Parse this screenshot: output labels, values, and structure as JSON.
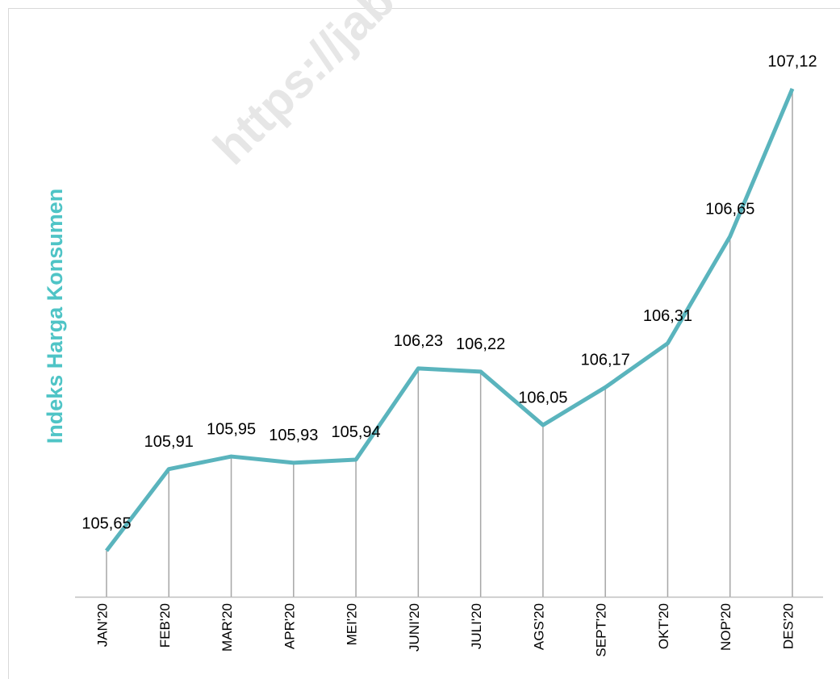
{
  "chart_data": {
    "type": "line",
    "y_axis_label": "Indeks Harga Konsumen",
    "watermark": "https://jab",
    "categories": [
      "JAN'20",
      "FEB'20",
      "MAR'20",
      "APR'20",
      "MEI'20",
      "JUNI'20",
      "JULI'20",
      "AGS'20",
      "SEPT'20",
      "OKT'20",
      "NOP'20",
      "DES'20"
    ],
    "series": [
      {
        "name": "Indeks Harga Konsumen",
        "color": "#5ab4bd",
        "values": [
          105.65,
          105.91,
          105.95,
          105.93,
          105.94,
          106.23,
          106.22,
          106.05,
          106.17,
          106.31,
          106.65,
          107.12
        ],
        "value_labels": [
          "105,65",
          "105,91",
          "105,95",
          "105,93",
          "105,94",
          "106,23",
          "106,22",
          "106,05",
          "106,17",
          "106,31",
          "106,65",
          "107,12"
        ]
      }
    ],
    "drop_lines": true
  }
}
